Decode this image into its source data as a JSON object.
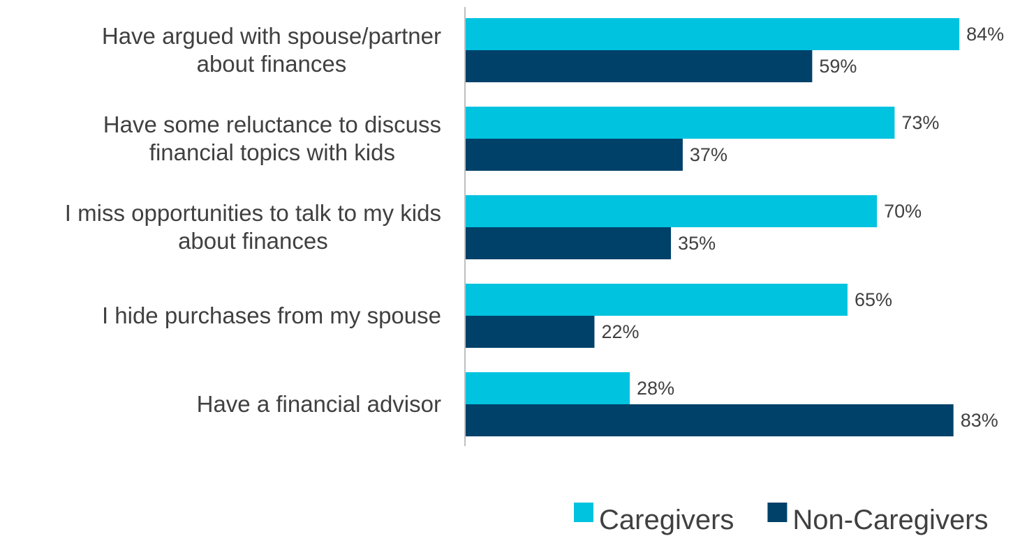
{
  "chart_data": {
    "type": "bar",
    "orientation": "horizontal",
    "categories": [
      [
        "Have argued with spouse/partner",
        "about finances"
      ],
      [
        "Have some reluctance to discuss",
        "financial topics with kids"
      ],
      [
        "I miss opportunities to talk to my kids",
        "about finances"
      ],
      [
        "I hide purchases from my spouse"
      ],
      [
        "Have a financial advisor"
      ]
    ],
    "series": [
      {
        "name": "Caregivers",
        "color": "#00C3DF",
        "values": [
          84,
          73,
          70,
          65,
          28
        ]
      },
      {
        "name": "Non-Caregivers",
        "color": "#00416A",
        "values": [
          59,
          37,
          35,
          22,
          83
        ]
      }
    ],
    "value_suffix": "%",
    "xlim": [
      0,
      100
    ],
    "grid": false,
    "legend_position": "bottom-right"
  }
}
